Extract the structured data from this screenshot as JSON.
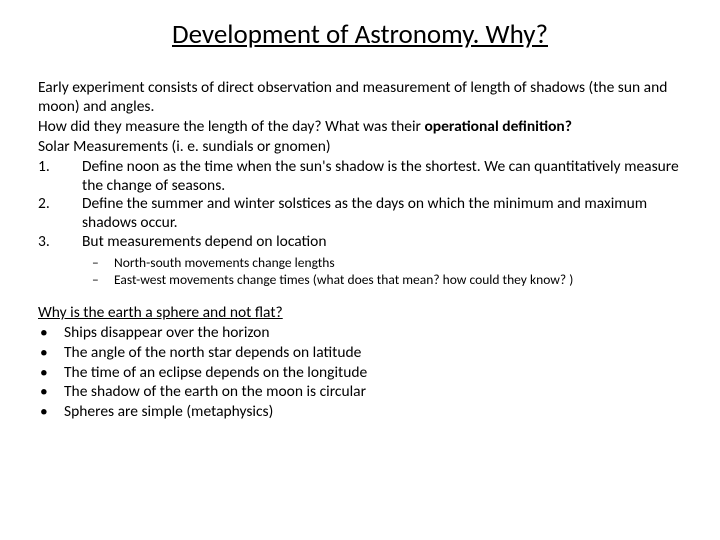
{
  "title": "Development of Astronomy.  Why?",
  "intro": {
    "p1": "Early experiment consists of direct observation and measurement of length of shadows (the sun and moon) and angles.",
    "p2_a": "How did they measure the length of the day?   What was their ",
    "p2_b": "operational definition?",
    "p3": "Solar Measurements  (i. e.  sundials  or gnomen)"
  },
  "numbered": [
    {
      "n": "1.",
      "t": "Define noon as the time when the sun's shadow is the shortest. We can quantitatively measure the change of seasons."
    },
    {
      "n": "2.",
      "t": "Define the summer and winter solstices as the days on which the minimum and maximum shadows occur."
    },
    {
      "n": "3.",
      "t": "But measurements depend on location"
    }
  ],
  "sub": [
    "North-south movements change lengths",
    "East-west movements change times (what does that mean? how could they know? )"
  ],
  "q2": "Why is the earth a sphere and not flat?",
  "bullets": [
    "Ships disappear over the horizon",
    "The angle of the north star depends on latitude",
    "The time of an eclipse depends on the longitude",
    "The shadow of the earth on the moon is circular",
    "Spheres are simple (metaphysics)"
  ]
}
